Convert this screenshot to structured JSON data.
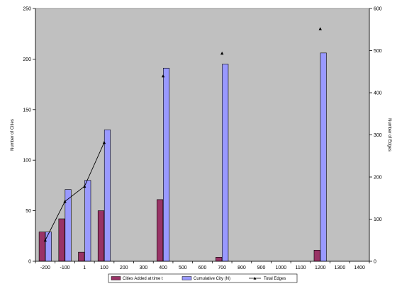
{
  "chart_data": {
    "type": "bar",
    "title": "",
    "x_categories": [
      "-200",
      "-100",
      "1",
      "100",
      "200",
      "300",
      "400",
      "500",
      "600",
      "700",
      "800",
      "900",
      "1000",
      "1100",
      "1200",
      "1300",
      "1400"
    ],
    "y_left": {
      "label": "Number of Cities",
      "lim": [
        0,
        250
      ],
      "ticks": [
        0,
        50,
        100,
        150,
        200,
        250
      ]
    },
    "y_right": {
      "label": "Number of Edges",
      "lim": [
        0,
        600
      ],
      "ticks": [
        0,
        100,
        200,
        300,
        400,
        500,
        600
      ]
    },
    "series": [
      {
        "name": "Cities Added at time t",
        "kind": "bar",
        "axis": "left",
        "color": "#993366",
        "points": [
          {
            "x": "-200",
            "y": 29
          },
          {
            "x": "-100",
            "y": 42
          },
          {
            "x": "1",
            "y": 9
          },
          {
            "x": "100",
            "y": 50
          },
          {
            "x": "400",
            "y": 61
          },
          {
            "x": "700",
            "y": 4
          },
          {
            "x": "1200",
            "y": 11
          }
        ]
      },
      {
        "name": "Cumulative City (N)",
        "kind": "bar",
        "axis": "left",
        "color": "#9999ff",
        "points": [
          {
            "x": "-200",
            "y": 29
          },
          {
            "x": "-100",
            "y": 71
          },
          {
            "x": "1",
            "y": 80
          },
          {
            "x": "100",
            "y": 130
          },
          {
            "x": "400",
            "y": 191
          },
          {
            "x": "700",
            "y": 195
          },
          {
            "x": "1200",
            "y": 206
          }
        ]
      },
      {
        "name": "Total Edges",
        "kind": "line",
        "axis": "right",
        "color": "#000000",
        "points": [
          {
            "x": "-200",
            "y": 50
          },
          {
            "x": "-100",
            "y": 142
          },
          {
            "x": "1",
            "y": 178
          },
          {
            "x": "100",
            "y": 282
          },
          {
            "x": "400",
            "y": 440
          },
          {
            "x": "700",
            "y": 494
          },
          {
            "x": "1200",
            "y": 552
          }
        ],
        "connected_points": 4
      }
    ],
    "grid": false,
    "legend_position": "bottom",
    "plot_background": "#c0c0c0"
  }
}
